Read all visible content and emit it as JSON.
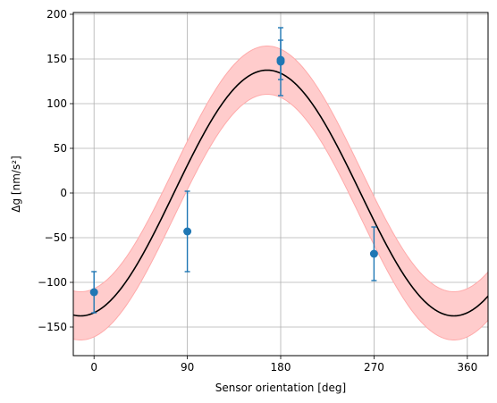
{
  "chart_data": {
    "type": "scatter",
    "title": "",
    "xlabel": "Sensor orientation [deg]",
    "ylabel": "Δg [nm/s²]",
    "xlim": [
      -20,
      380
    ],
    "ylim": [
      -182,
      202
    ],
    "x_ticks": [
      0,
      90,
      180,
      270,
      360
    ],
    "y_ticks": [
      -150,
      -100,
      -50,
      0,
      50,
      100,
      150,
      200
    ],
    "grid": true,
    "colors": {
      "points": "#1f77b4",
      "fit_line": "#000000",
      "band_fill": "#ffcccc",
      "band_edge": "#ffaaaa",
      "grid": "#b0b0b0"
    },
    "fit": {
      "form": "A*cos(x - phase) + offset",
      "amplitude": 137.5,
      "phase_deg": 167,
      "offset": 0,
      "band_halfwidth": 27
    },
    "points": [
      {
        "x": 0,
        "y": -111,
        "yerr": 23
      },
      {
        "x": 90,
        "y": -43,
        "yerr": 45
      },
      {
        "x": 180,
        "y": 149,
        "yerr": 22
      },
      {
        "x": 180,
        "y": 147,
        "yerr": 38
      },
      {
        "x": 270,
        "y": -68,
        "yerr": 30
      }
    ]
  }
}
